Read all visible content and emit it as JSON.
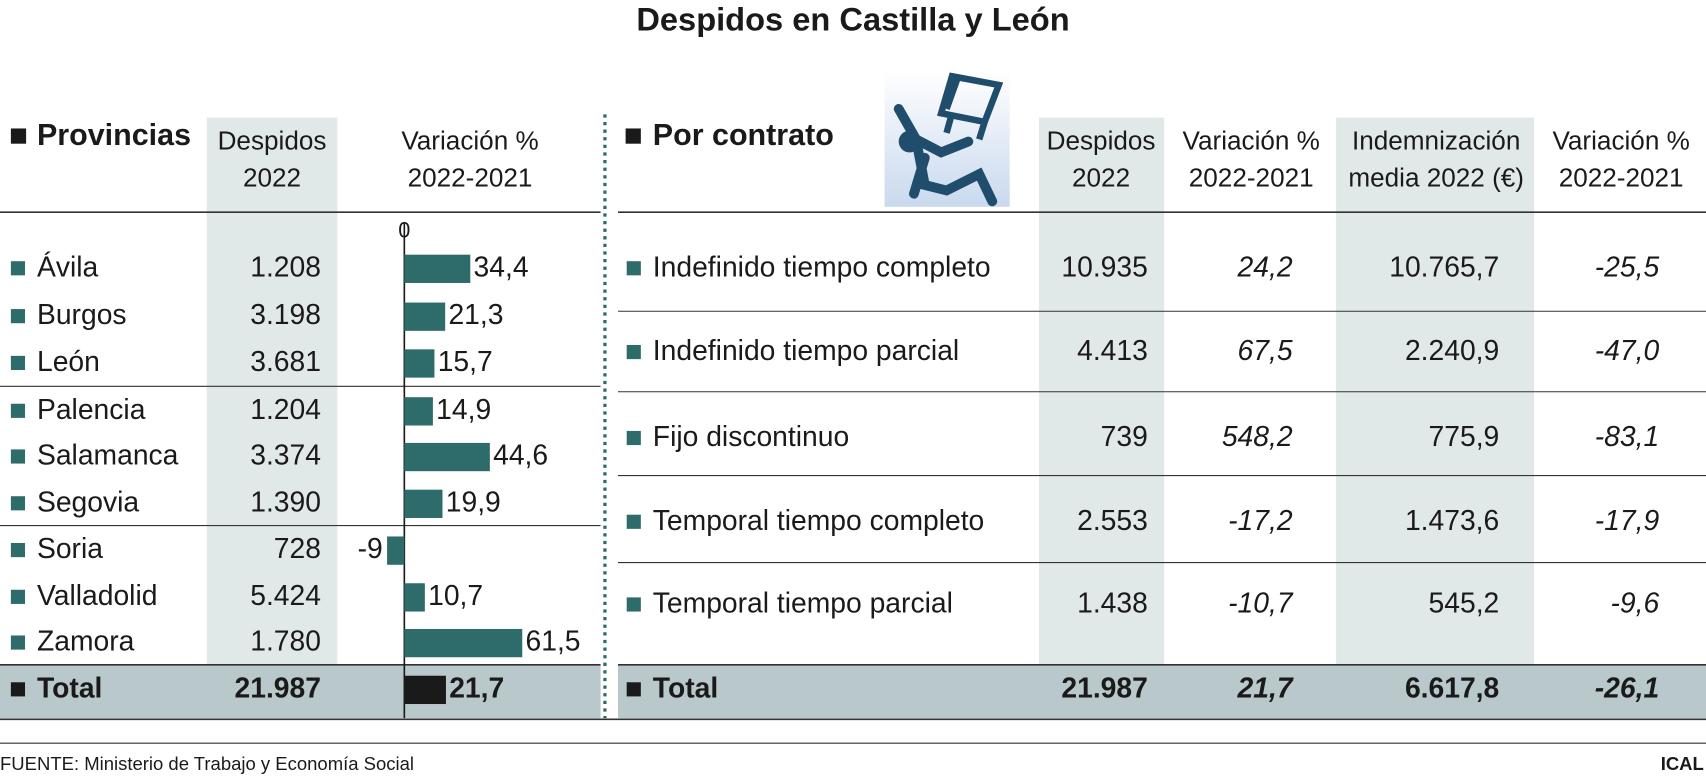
{
  "title": "Despidos en Castilla y León",
  "chart_data": {
    "type": "bar",
    "heading": "Provincias",
    "value_header": [
      "Variación %",
      "2022-2021"
    ],
    "categories": [
      "Ávila",
      "Burgos",
      "León",
      "Palencia",
      "Salamanca",
      "Segovia",
      "Soria",
      "Valladolid",
      "Zamora",
      "Total"
    ],
    "values": [
      34.4,
      21.3,
      15.7,
      14.9,
      44.6,
      19.9,
      -9,
      10.7,
      61.5,
      21.7
    ],
    "value_labels": [
      "34,4",
      "21,3",
      "15,7",
      "14,9",
      "44,6",
      "19,9",
      "-9",
      "10,7",
      "61,5",
      "21,7"
    ],
    "color": "#2e6b6b",
    "total_color": "#1a1a1a",
    "xlim": [
      -10,
      70
    ],
    "xticks": [
      0
    ]
  },
  "provincias_table": {
    "header": [
      "Despidos",
      "2022"
    ],
    "despidos": [
      "1.208",
      "3.198",
      "3.681",
      "1.204",
      "3.374",
      "1.390",
      "728",
      "5.424",
      "1.780",
      "21.987"
    ]
  },
  "contrato_table": {
    "heading": "Por contrato",
    "headers": [
      [
        "Despidos",
        "2022"
      ],
      [
        "Variación %",
        "2022-2021"
      ],
      [
        "Indemnización",
        "media 2022 (€)"
      ],
      [
        "Variación %",
        "2022-2021"
      ]
    ],
    "rows": [
      [
        "Indefinido tiempo completo",
        "10.935",
        "24,2",
        "10.765,7",
        "-25,5"
      ],
      [
        "Indefinido tiempo parcial",
        "4.413",
        "67,5",
        "2.240,9",
        "-47,0"
      ],
      [
        "Fijo discontinuo",
        "739",
        "548,2",
        "775,9",
        "-83,1"
      ],
      [
        "Temporal tiempo completo",
        "2.553",
        "-17,2",
        "1.473,6",
        "-17,9"
      ],
      [
        "Temporal tiempo parcial",
        "1.438",
        "-10,7",
        "545,2",
        "-9,6"
      ],
      [
        "Total",
        "21.987",
        "21,7",
        "6.617,8",
        "-26,1"
      ]
    ]
  },
  "source": "FUENTE: Ministerio de Trabajo y Economía Social",
  "credit": "ICAL"
}
